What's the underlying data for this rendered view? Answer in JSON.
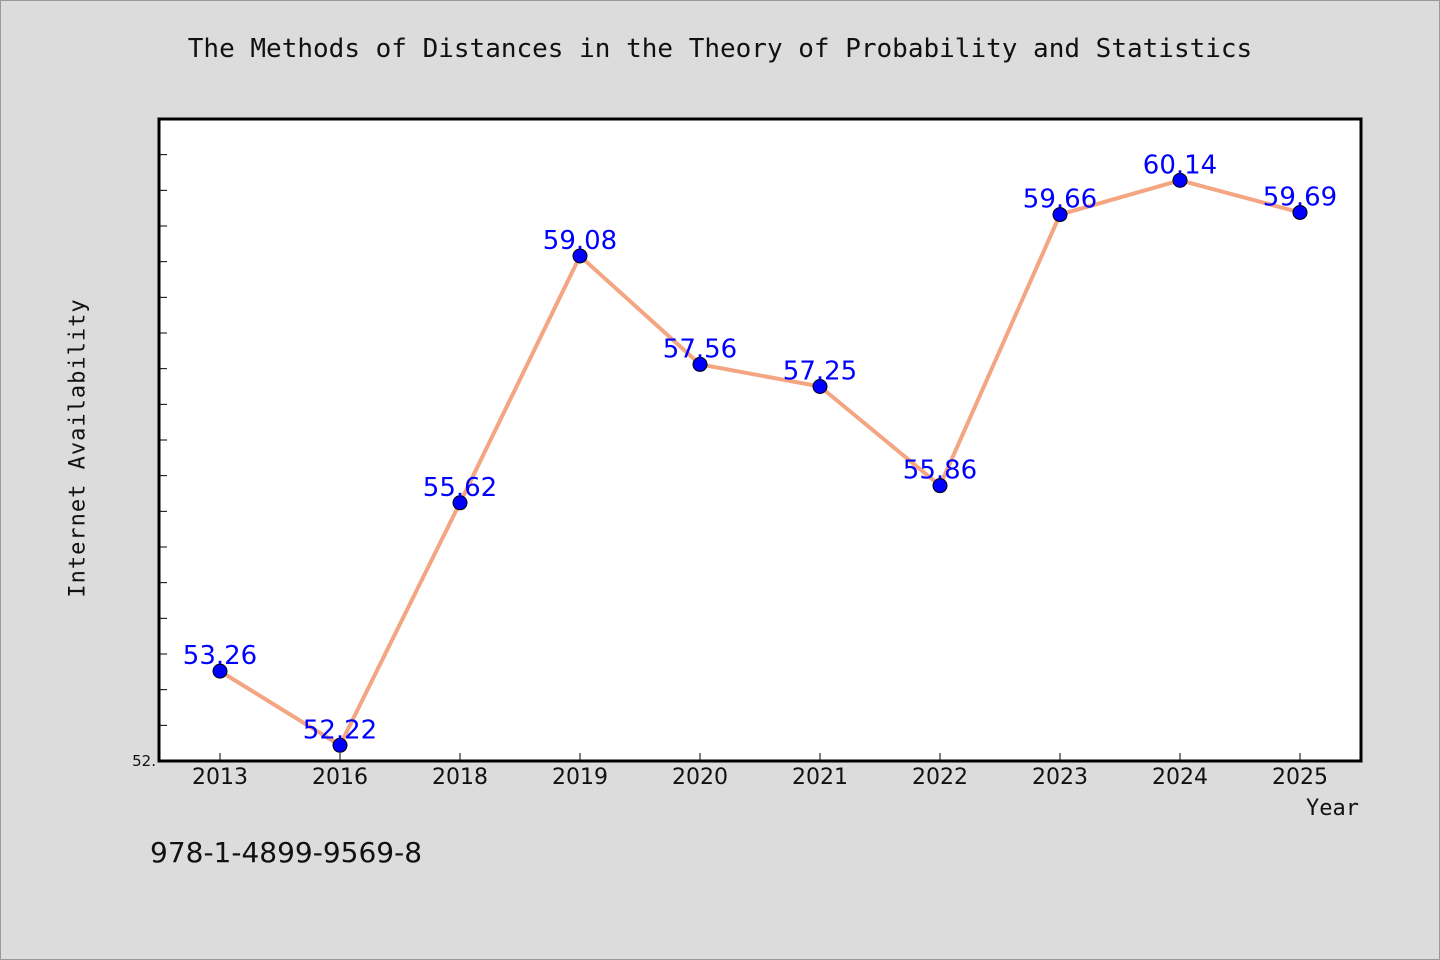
{
  "chart_data": {
    "type": "line",
    "title": "The Methods of Distances in the Theory of Probability and Statistics",
    "xlabel": "Year",
    "ylabel": "Internet Availability",
    "categories": [
      "2013",
      "2016",
      "2018",
      "2019",
      "2020",
      "2021",
      "2022",
      "2023",
      "2024",
      "2025"
    ],
    "values": [
      53.26,
      52.22,
      55.62,
      59.08,
      57.56,
      57.25,
      55.86,
      59.66,
      60.14,
      59.69
    ],
    "data_labels": [
      "53.26",
      "52.22",
      "55.62",
      "59.08",
      "57.56",
      "57.25",
      "55.86",
      "59.66",
      "60.14",
      "59.69"
    ],
    "y_tick_label": "52.",
    "ylim": [
      52,
      61
    ],
    "grid": false,
    "legend": "none",
    "line_color": "#f4a582",
    "marker_color": "#0000ff"
  },
  "footer": {
    "isbn": "978-1-4899-9569-8"
  }
}
